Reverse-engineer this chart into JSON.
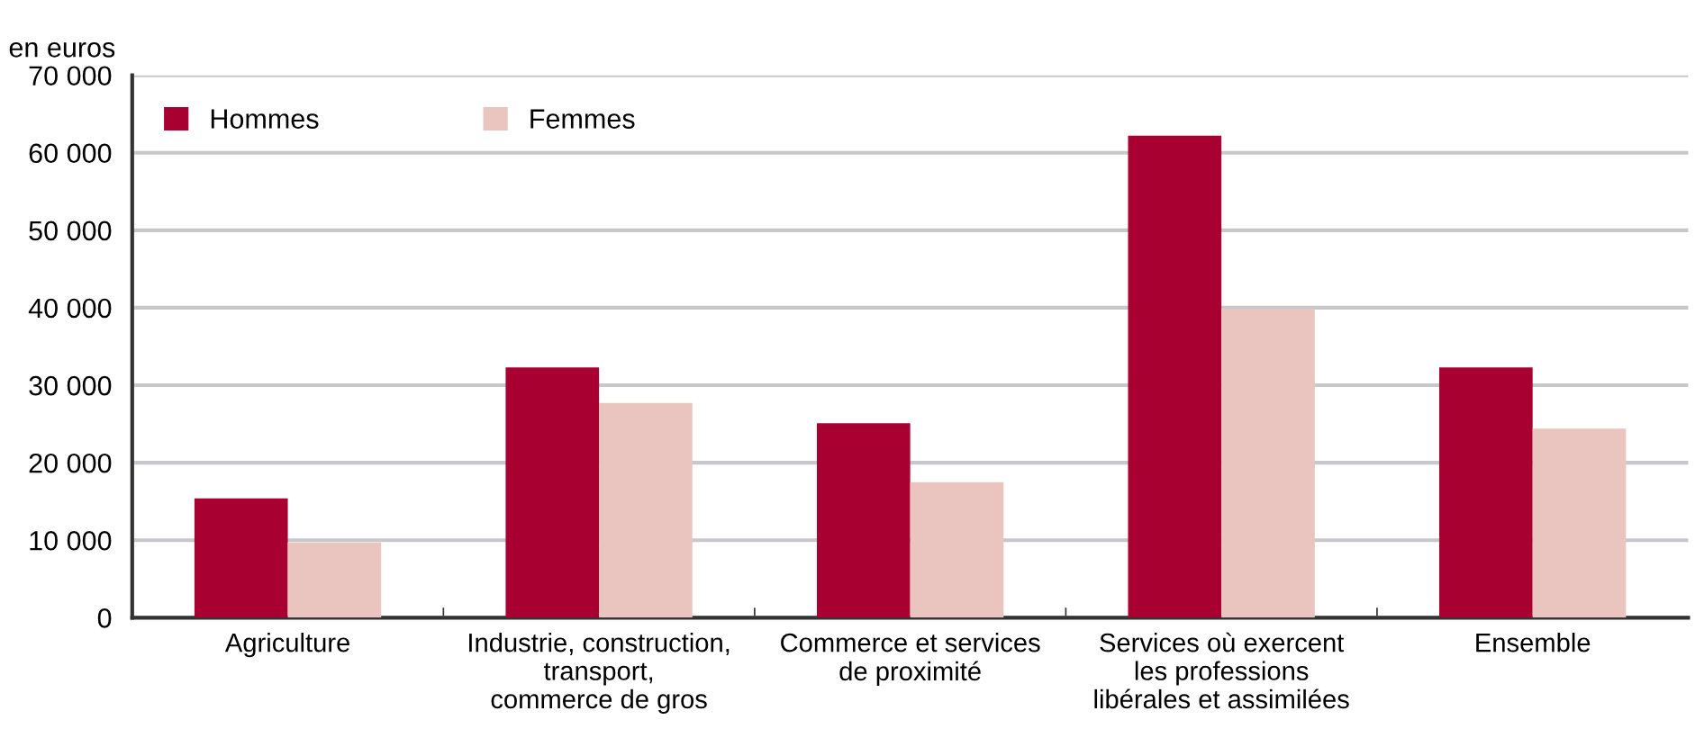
{
  "chart_data": {
    "type": "bar",
    "ylabel": "en euros",
    "categories": [
      "Agriculture",
      "Industrie, construction,\ntransport,\ncommerce de gros",
      "Commerce et services\nde proximité",
      "Services où exercent\nles professions\nlibérales et assimilées",
      "Ensemble"
    ],
    "series": [
      {
        "name": "Hommes",
        "color": "#a80030",
        "values": [
          15400,
          32300,
          25100,
          62200,
          32300
        ]
      },
      {
        "name": "Femmes",
        "color": "#eac5bf",
        "values": [
          9700,
          27700,
          17500,
          39900,
          24400
        ]
      }
    ],
    "ylim": [
      0,
      70000
    ],
    "yticks": [
      {
        "value": 0,
        "label": "0"
      },
      {
        "value": 10000,
        "label": "10 000"
      },
      {
        "value": 20000,
        "label": "20 000"
      },
      {
        "value": 30000,
        "label": "30 000"
      },
      {
        "value": 40000,
        "label": "40 000"
      },
      {
        "value": 50000,
        "label": "50 000"
      },
      {
        "value": 60000,
        "label": "60 000"
      },
      {
        "value": 70000,
        "label": "70 000"
      }
    ],
    "grid": "y",
    "legend": "top left"
  }
}
